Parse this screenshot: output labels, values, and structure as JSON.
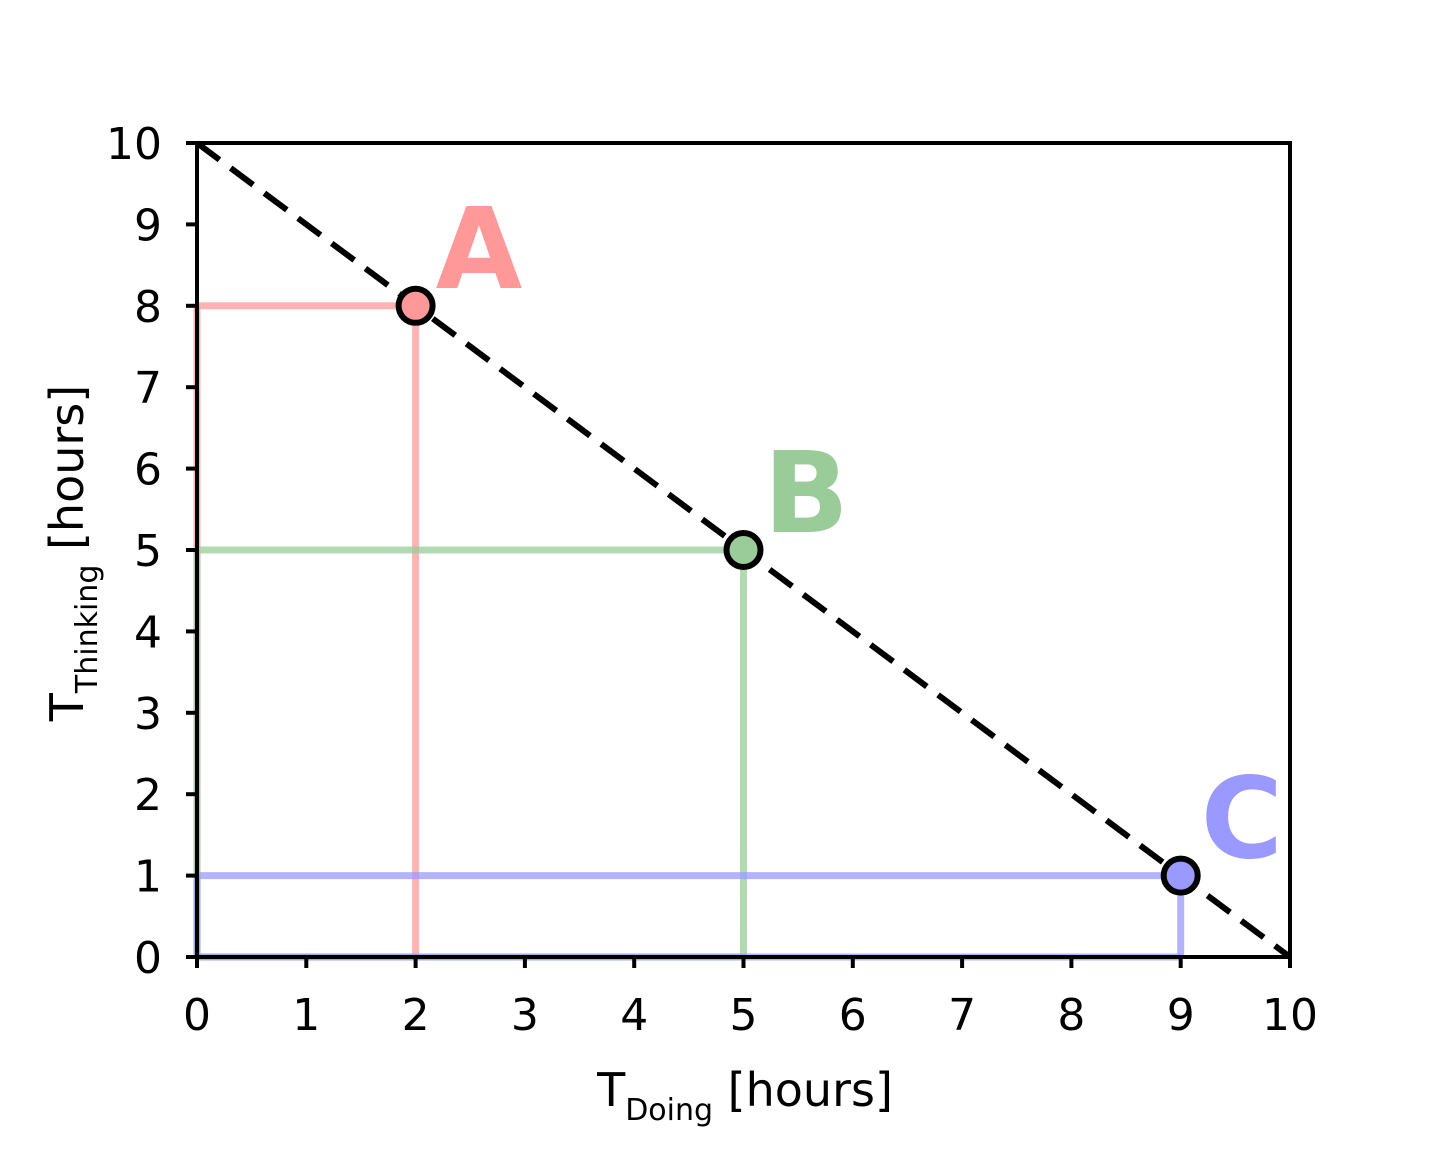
{
  "chart_data": {
    "type": "line",
    "xlabel": {
      "main": "T",
      "sub": "Doing",
      "unit": " [hours]"
    },
    "ylabel": {
      "main": "T",
      "sub": "Thinking",
      "unit": " [hours]"
    },
    "xlim": [
      0,
      10
    ],
    "ylim": [
      0,
      10
    ],
    "xticks": [
      "0",
      "1",
      "2",
      "3",
      "4",
      "5",
      "6",
      "7",
      "8",
      "9",
      "10"
    ],
    "yticks": [
      "0",
      "1",
      "2",
      "3",
      "4",
      "5",
      "6",
      "7",
      "8",
      "9",
      "10"
    ],
    "grid": false,
    "legend": "none",
    "line": {
      "x": [
        0,
        10
      ],
      "y": [
        10,
        0
      ],
      "style": "dashed",
      "color": "#000000"
    },
    "points": [
      {
        "label": "A",
        "x": 2,
        "y": 8,
        "color": "#ff9999"
      },
      {
        "label": "B",
        "x": 5,
        "y": 5,
        "color": "#99cc99"
      },
      {
        "label": "C",
        "x": 9,
        "y": 1,
        "color": "#9999ff"
      }
    ]
  }
}
